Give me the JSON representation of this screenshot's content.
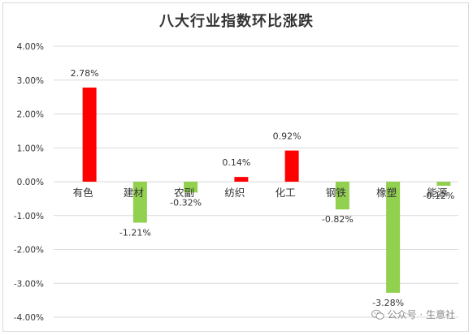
{
  "chart_data": {
    "type": "bar",
    "title": "八大行业指数环比涨跌",
    "categories": [
      "有色",
      "建材",
      "农副",
      "纺织",
      "化工",
      "钢铁",
      "橡塑",
      "能源"
    ],
    "values": [
      2.78,
      -1.21,
      -0.32,
      0.14,
      0.92,
      -0.82,
      -3.28,
      -0.12
    ],
    "value_labels": [
      "2.78%",
      "-1.21%",
      "-0.32%",
      "0.14%",
      "0.92%",
      "-0.82%",
      "-3.28%",
      "-0.12%"
    ],
    "y_ticks": [
      4,
      3,
      2,
      1,
      0,
      -1,
      -2,
      -3,
      -4
    ],
    "y_tick_labels": [
      "4.00%",
      "3.00%",
      "2.00%",
      "1.00%",
      "0.00%",
      "-1.00%",
      "-2.00%",
      "-3.00%",
      "-4.00%"
    ],
    "ylim": [
      -4,
      4
    ],
    "grid": true,
    "legend": false,
    "colors": {
      "positive": "#ff0000",
      "negative": "#92d050",
      "grid": "#d9d9d9",
      "text": "#333333"
    }
  },
  "watermark": {
    "text": "公众号 · 生意社",
    "icon": "wechat-icon"
  }
}
